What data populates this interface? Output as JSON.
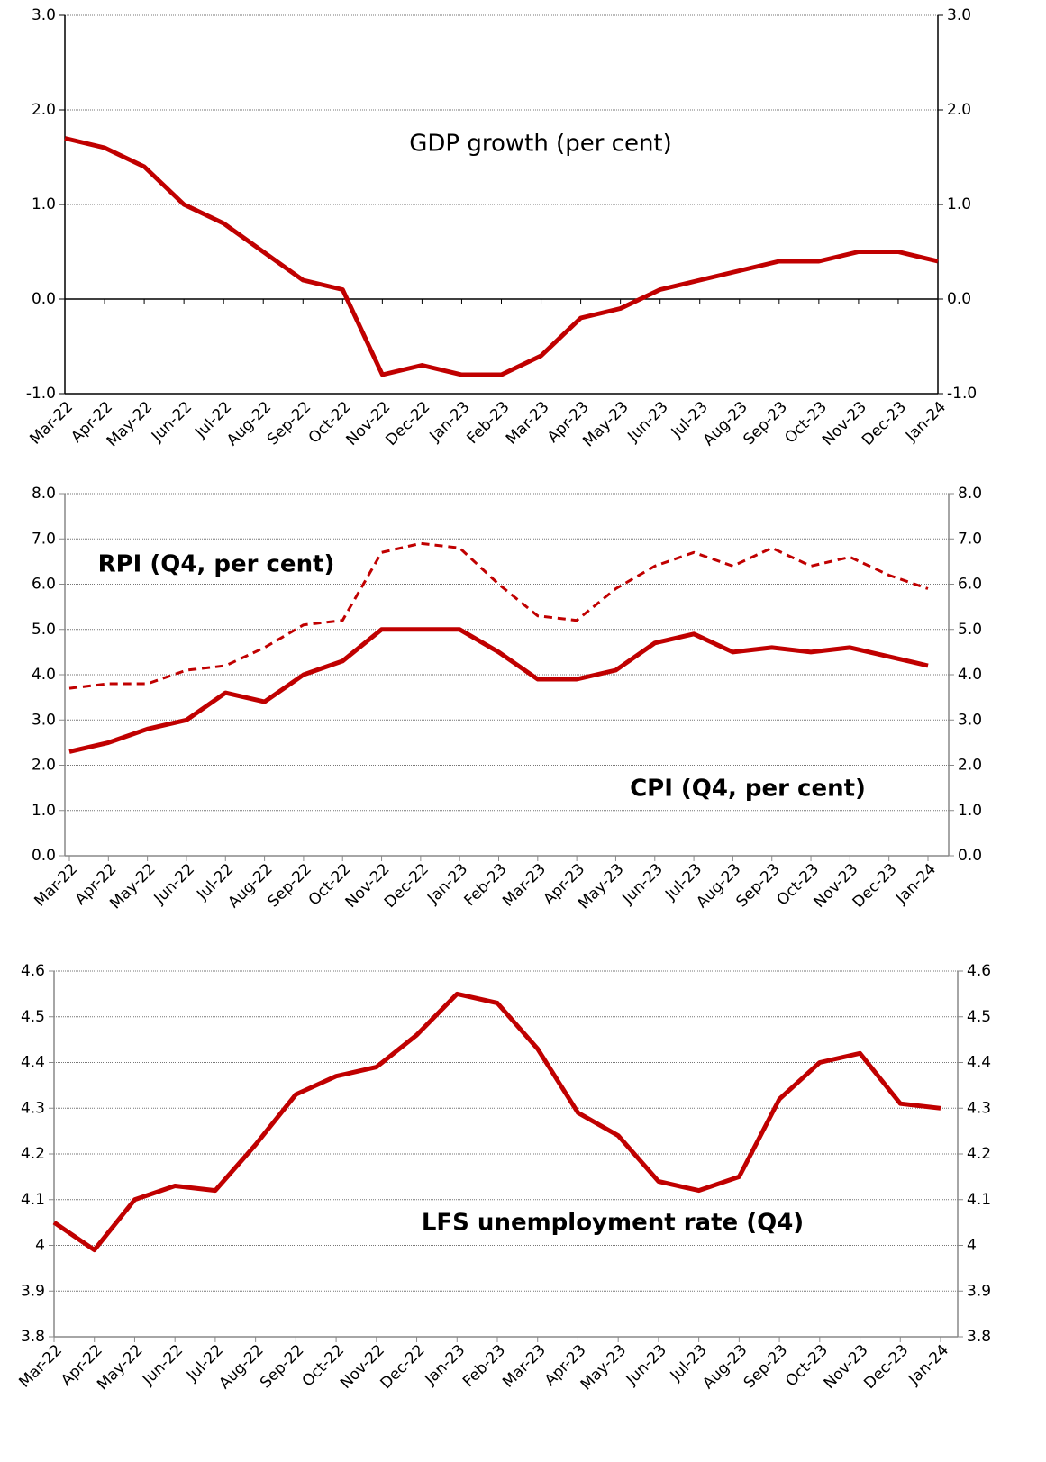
{
  "chart_data": [
    {
      "type": "line",
      "categories": [
        "Mar-22",
        "Apr-22",
        "May-22",
        "Jun-22",
        "Jul-22",
        "Aug-22",
        "Sep-22",
        "Oct-22",
        "Nov-22",
        "Dec-22",
        "Jan-23",
        "Feb-23",
        "Mar-23",
        "Apr-23",
        "May-23",
        "Jun-23",
        "Jul-23",
        "Aug-23",
        "Sep-23",
        "Oct-23",
        "Nov-23",
        "Dec-23",
        "Jan-24"
      ],
      "series": [
        {
          "name": "GDP growth (per cent)",
          "color": "#c00000",
          "dash": false,
          "values": [
            1.7,
            1.6,
            1.4,
            1.0,
            0.8,
            0.5,
            0.2,
            0.1,
            -0.8,
            -0.7,
            -0.8,
            -0.8,
            -0.6,
            -0.2,
            -0.1,
            0.1,
            0.2,
            0.3,
            0.4,
            0.4,
            0.5,
            0.5,
            0.4
          ]
        }
      ],
      "ylim": [
        -1,
        3
      ],
      "yticks": [
        {
          "value": -1,
          "label": "-1.0"
        },
        {
          "value": 0,
          "label": "0.0"
        },
        {
          "value": 1,
          "label": "1.0"
        },
        {
          "value": 2,
          "label": "2.0"
        },
        {
          "value": 3,
          "label": "3.0"
        }
      ],
      "grid": true,
      "mirror_axis": true
    },
    {
      "type": "line",
      "categories": [
        "Mar-22",
        "Apr-22",
        "May-22",
        "Jun-22",
        "Jul-22",
        "Aug-22",
        "Sep-22",
        "Oct-22",
        "Nov-22",
        "Dec-22",
        "Jan-23",
        "Feb-23",
        "Mar-23",
        "Apr-23",
        "May-23",
        "Jun-23",
        "Jul-23",
        "Aug-23",
        "Sep-23",
        "Oct-23",
        "Nov-23",
        "Dec-23",
        "Jan-24"
      ],
      "series": [
        {
          "name": "RPI (Q4, per cent)",
          "color": "#c00000",
          "dash": true,
          "values": [
            3.7,
            3.8,
            3.8,
            4.1,
            4.2,
            4.6,
            5.1,
            5.2,
            6.7,
            6.9,
            6.8,
            6.0,
            5.3,
            5.2,
            5.9,
            6.4,
            6.7,
            6.4,
            6.8,
            6.4,
            6.6,
            6.2,
            5.9
          ]
        },
        {
          "name": "CPI (Q4, per cent)",
          "color": "#c00000",
          "dash": false,
          "values": [
            2.3,
            2.5,
            2.8,
            3.0,
            3.6,
            3.4,
            4.0,
            4.3,
            5.0,
            5.0,
            5.0,
            4.5,
            3.9,
            3.9,
            4.1,
            4.7,
            4.9,
            4.5,
            4.6,
            4.5,
            4.6,
            4.4,
            4.2
          ]
        }
      ],
      "ylim": [
        0,
        8
      ],
      "yticks": [
        {
          "value": 0,
          "label": "0.0"
        },
        {
          "value": 1,
          "label": "1.0"
        },
        {
          "value": 2,
          "label": "2.0"
        },
        {
          "value": 3,
          "label": "3.0"
        },
        {
          "value": 4,
          "label": "4.0"
        },
        {
          "value": 5,
          "label": "5.0"
        },
        {
          "value": 6,
          "label": "6.0"
        },
        {
          "value": 7,
          "label": "7.0"
        },
        {
          "value": 8,
          "label": "8.0"
        }
      ],
      "grid": true,
      "mirror_axis": true
    },
    {
      "type": "line",
      "categories": [
        "Mar-22",
        "Apr-22",
        "May-22",
        "Jun-22",
        "Jul-22",
        "Aug-22",
        "Sep-22",
        "Oct-22",
        "Nov-22",
        "Dec-22",
        "Jan-23",
        "Feb-23",
        "Mar-23",
        "Apr-23",
        "May-23",
        "Jun-23",
        "Jul-23",
        "Aug-23",
        "Sep-23",
        "Oct-23",
        "Nov-23",
        "Dec-23",
        "Jan-24"
      ],
      "series": [
        {
          "name": "LFS unemployment rate (Q4)",
          "color": "#c00000",
          "dash": false,
          "values": [
            4.05,
            3.99,
            4.1,
            4.13,
            4.12,
            4.22,
            4.33,
            4.37,
            4.39,
            4.46,
            4.55,
            4.53,
            4.43,
            4.29,
            4.24,
            4.14,
            4.12,
            4.15,
            4.32,
            4.4,
            4.42,
            4.31,
            4.3
          ]
        }
      ],
      "ylim": [
        3.8,
        4.6
      ],
      "yticks": [
        3.8,
        3.9,
        4.0,
        4.1,
        4.2,
        4.3,
        4.4,
        4.5,
        4.6
      ],
      "grid": true,
      "mirror_axis": true
    }
  ]
}
